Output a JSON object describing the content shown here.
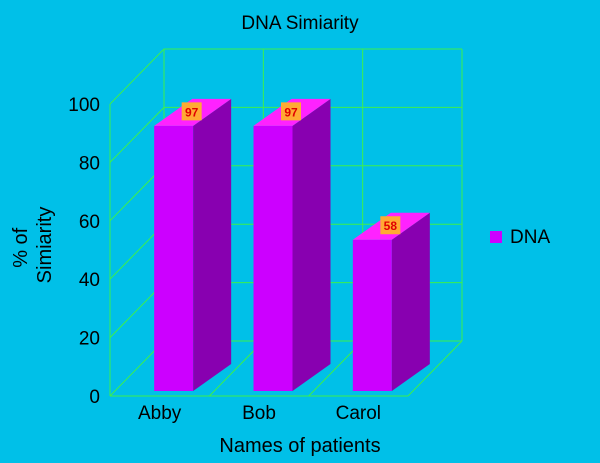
{
  "chart_data": {
    "type": "bar",
    "title": "DNA Simiarity",
    "xlabel": "Names of patients",
    "ylabel_lines": [
      "% of",
      "Simiarity"
    ],
    "categories": [
      "Abby",
      "Bob",
      "Carol"
    ],
    "series": [
      {
        "name": "DNA",
        "values": [
          97,
          97,
          58
        ],
        "data_labels": [
          "97",
          "97",
          "58"
        ]
      }
    ],
    "ylim": [
      0,
      100
    ],
    "yticks": [
      "0",
      "20",
      "40",
      "60",
      "80",
      "100"
    ],
    "grid": true,
    "legend_position": "right",
    "colors": {
      "background": "#00c0e8",
      "grid": "#3cf04c",
      "bar_front": "#cc00ff",
      "bar_side": "#8800b0",
      "bar_top": "#ff22ff",
      "label_bg": "#ffaa33",
      "label_text": "#e00000"
    }
  }
}
